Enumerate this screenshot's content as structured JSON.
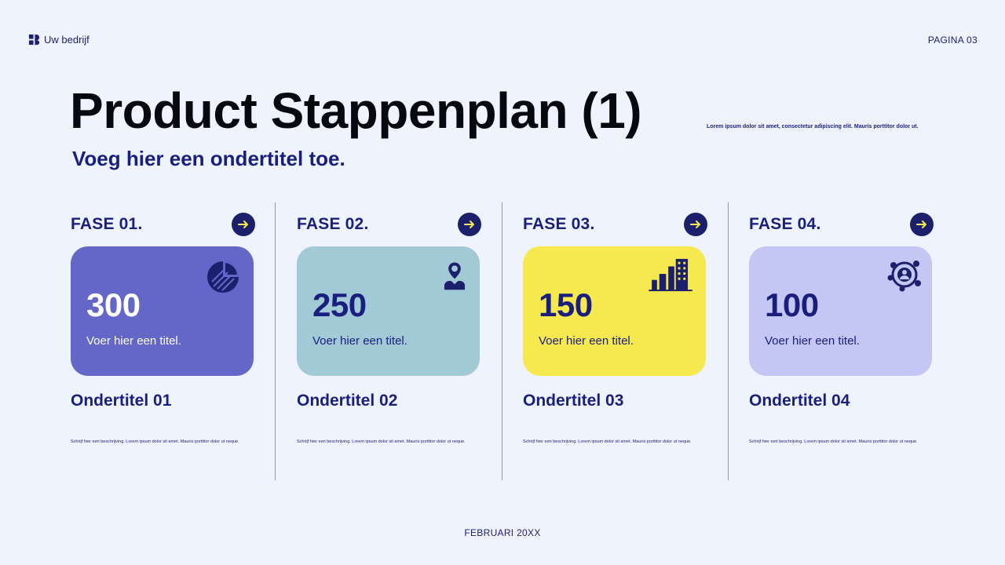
{
  "header": {
    "brand": "Uw bedrijf",
    "page_number": "PAGINA 03"
  },
  "title": "Product Stappenplan (1)",
  "subtitle": "Voeg hier een ondertitel toe.",
  "lorem": "Lorem ipsum dolor sit amet, consectetur adipiscing elit. Mauris porttitor dolor ut.",
  "phases": [
    {
      "label": "FASE 01.",
      "value": "300",
      "caption": "Voer hier een titel.",
      "subtitle": "Ondertitel 01",
      "description": "Schrijf hier een beschrijving. Lorem ipsum dolor sit amet. Mauris porttitor dolor ut neque.",
      "icon": "pie-chart-icon",
      "card_color": "#6466c8",
      "text_color": "#ffffff"
    },
    {
      "label": "FASE 02.",
      "value": "250",
      "caption": "Voer hier een titel.",
      "subtitle": "Ondertitel 02",
      "description": "Schrijf hier een beschrijving. Lorem ipsum dolor sit amet. Mauris porttitor dolor ut neque.",
      "icon": "location-person-icon",
      "card_color": "#a2c9d6",
      "text_color": "#1a1f7e"
    },
    {
      "label": "FASE 03.",
      "value": "150",
      "caption": "Voer hier een titel.",
      "subtitle": "Ondertitel 03",
      "description": "Schrijf hier een beschrijving. Lorem ipsum dolor sit amet. Mauris porttitor dolor ut neque.",
      "icon": "buildings-icon",
      "card_color": "#f6e84f",
      "text_color": "#1a1f7e"
    },
    {
      "label": "FASE 04.",
      "value": "100",
      "caption": "Voer hier een titel.",
      "subtitle": "Ondertitel 04",
      "description": "Schrijf hier een beschrijving. Lorem ipsum dolor sit amet. Mauris porttitor dolor ut neque.",
      "icon": "network-person-icon",
      "card_color": "#c4c6f4",
      "text_color": "#1a1f7e"
    }
  ],
  "footer": "FEBRUARI 20XX",
  "colors": {
    "background": "#eef3fd",
    "navy": "#1c1f6b",
    "arrow_yellow": "#f6e84f"
  }
}
